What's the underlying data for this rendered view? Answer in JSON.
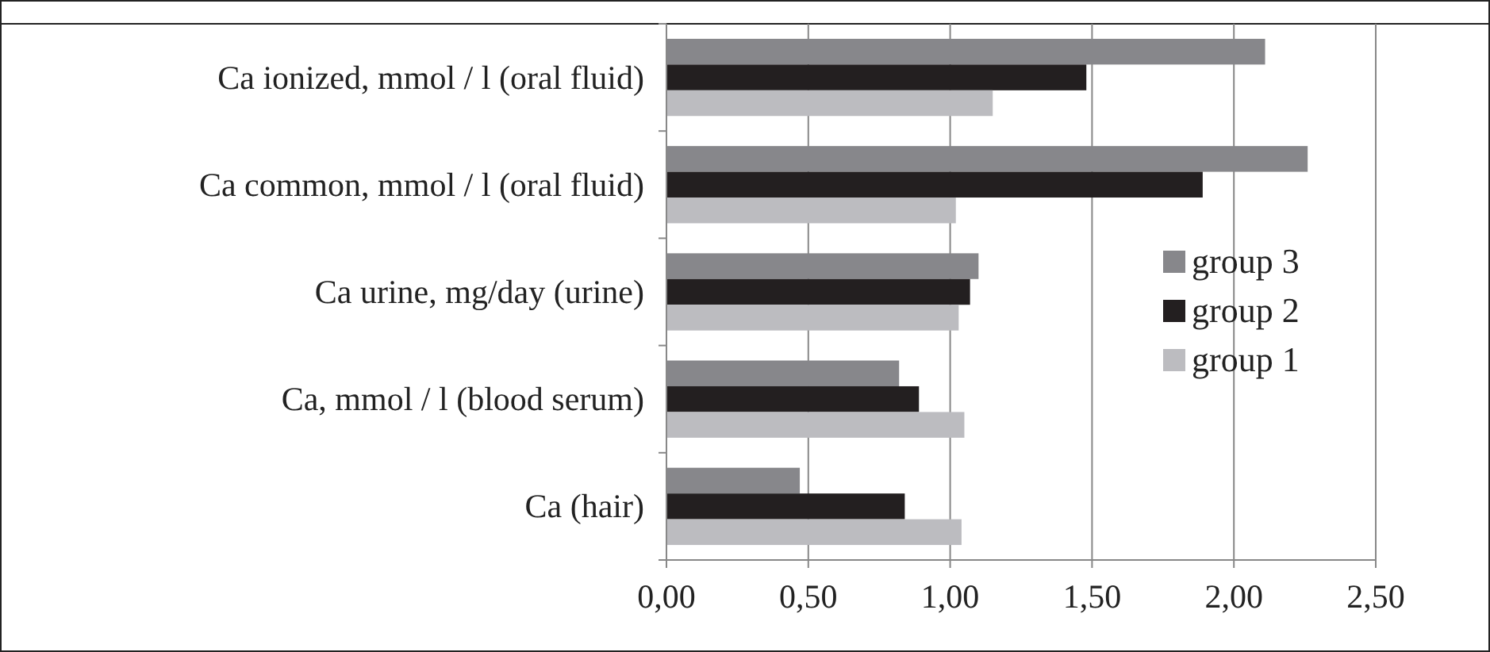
{
  "chart_data": {
    "type": "bar",
    "orientation": "horizontal",
    "categories": [
      "Ca ionized, mmol / l (oral fluid)",
      "Ca common, mmol / l (oral fluid)",
      "Ca urine, mg/day (urine)",
      "Ca, mmol / l (blood serum)",
      "Ca (hair)"
    ],
    "series": [
      {
        "name": "group 3",
        "color": "#87878b",
        "values": [
          2.11,
          2.26,
          1.1,
          0.82,
          0.47
        ]
      },
      {
        "name": "group 2",
        "color": "#231f20",
        "values": [
          1.48,
          1.89,
          1.07,
          0.89,
          0.84
        ]
      },
      {
        "name": "group 1",
        "color": "#bcbcc0",
        "values": [
          1.15,
          1.02,
          1.03,
          1.05,
          1.04
        ]
      }
    ],
    "xlim": [
      0,
      2.5
    ],
    "xticks": [
      {
        "value": 0,
        "label": "0,00"
      },
      {
        "value": 0.5,
        "label": "0,50"
      },
      {
        "value": 1,
        "label": "1,00"
      },
      {
        "value": 1.5,
        "label": "1,50"
      },
      {
        "value": 2,
        "label": "2,00"
      },
      {
        "value": 2.5,
        "label": "2,50"
      }
    ],
    "grid": "x",
    "legend": "right"
  }
}
